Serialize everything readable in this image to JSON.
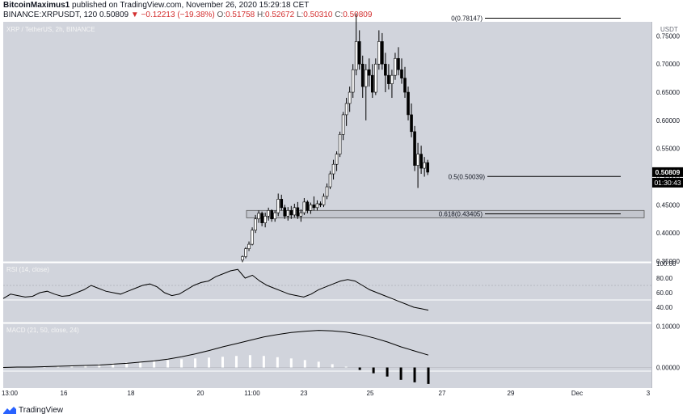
{
  "header": {
    "author": "BitcoinMaximus1",
    "published": "published on TradingView.com, November 26, 2020 15:29:18 CET",
    "symbol": "BINANCE:XRPUSDT, 120",
    "last": "0.50809",
    "change": "▼ −0.12213 (−19.38%)",
    "o_label": "O:",
    "o": "0.51758",
    "h_label": "H:",
    "h": "0.52672",
    "l_label": "L:",
    "l": "0.50310",
    "c_label": "C:",
    "c": "0.50809"
  },
  "footer": {
    "brand": "TradingView"
  },
  "colors": {
    "background": "#d1d4dc",
    "candle_up": "#ffffff",
    "candle_down": "#000000",
    "separator": "#ffffff",
    "fib_line": "#000000",
    "macd_line": "#000000"
  },
  "chart_data": {
    "type": "candlestick",
    "title": "XRP / TetherUS, 2h, BINANCE",
    "y_unit": "USDT",
    "y_ticks": [
      "0.75000",
      "0.70000",
      "0.65000",
      "0.60000",
      "0.55000",
      "0.50000",
      "0.45000",
      "0.40000",
      "0.35000"
    ],
    "x_ticks": [
      "13:00",
      "16",
      "18",
      "20",
      "11:00",
      "23",
      "25",
      "27",
      "29",
      "Dec",
      "3"
    ],
    "last_price": "0.50809",
    "countdown": "01:30:43",
    "candles": [
      [
        0.352,
        0.36,
        0.348,
        0.358
      ],
      [
        0.358,
        0.375,
        0.355,
        0.372
      ],
      [
        0.372,
        0.385,
        0.368,
        0.38
      ],
      [
        0.38,
        0.41,
        0.378,
        0.405
      ],
      [
        0.405,
        0.432,
        0.4,
        0.425
      ],
      [
        0.425,
        0.44,
        0.418,
        0.435
      ],
      [
        0.435,
        0.438,
        0.412,
        0.418
      ],
      [
        0.418,
        0.436,
        0.41,
        0.43
      ],
      [
        0.43,
        0.445,
        0.422,
        0.44
      ],
      [
        0.44,
        0.442,
        0.42,
        0.425
      ],
      [
        0.425,
        0.44,
        0.42,
        0.436
      ],
      [
        0.436,
        0.47,
        0.43,
        0.46
      ],
      [
        0.46,
        0.468,
        0.44,
        0.445
      ],
      [
        0.445,
        0.45,
        0.425,
        0.43
      ],
      [
        0.43,
        0.446,
        0.422,
        0.44
      ],
      [
        0.44,
        0.448,
        0.425,
        0.432
      ],
      [
        0.432,
        0.452,
        0.428,
        0.445
      ],
      [
        0.445,
        0.455,
        0.425,
        0.43
      ],
      [
        0.43,
        0.442,
        0.42,
        0.436
      ],
      [
        0.436,
        0.462,
        0.432,
        0.455
      ],
      [
        0.455,
        0.458,
        0.435,
        0.44
      ],
      [
        0.44,
        0.454,
        0.434,
        0.45
      ],
      [
        0.45,
        0.465,
        0.44,
        0.445
      ],
      [
        0.445,
        0.458,
        0.44,
        0.452
      ],
      [
        0.452,
        0.456,
        0.446,
        0.45
      ],
      [
        0.45,
        0.47,
        0.446,
        0.465
      ],
      [
        0.465,
        0.488,
        0.46,
        0.482
      ],
      [
        0.482,
        0.51,
        0.478,
        0.505
      ],
      [
        0.505,
        0.53,
        0.495,
        0.522
      ],
      [
        0.522,
        0.545,
        0.51,
        0.54
      ],
      [
        0.54,
        0.58,
        0.535,
        0.575
      ],
      [
        0.575,
        0.615,
        0.565,
        0.61
      ],
      [
        0.61,
        0.64,
        0.59,
        0.63
      ],
      [
        0.63,
        0.66,
        0.615,
        0.65
      ],
      [
        0.65,
        0.7,
        0.64,
        0.69
      ],
      [
        0.69,
        0.79,
        0.68,
        0.74
      ],
      [
        0.74,
        0.76,
        0.69,
        0.7
      ],
      [
        0.7,
        0.715,
        0.64,
        0.66
      ],
      [
        0.66,
        0.7,
        0.6,
        0.69
      ],
      [
        0.69,
        0.71,
        0.66,
        0.68
      ],
      [
        0.68,
        0.7,
        0.64,
        0.65
      ],
      [
        0.65,
        0.71,
        0.645,
        0.7
      ],
      [
        0.7,
        0.76,
        0.69,
        0.74
      ],
      [
        0.74,
        0.755,
        0.69,
        0.7
      ],
      [
        0.7,
        0.72,
        0.65,
        0.68
      ],
      [
        0.68,
        0.7,
        0.655,
        0.665
      ],
      [
        0.665,
        0.69,
        0.64,
        0.68
      ],
      [
        0.68,
        0.72,
        0.672,
        0.71
      ],
      [
        0.71,
        0.73,
        0.68,
        0.69
      ],
      [
        0.69,
        0.71,
        0.665,
        0.675
      ],
      [
        0.675,
        0.695,
        0.64,
        0.65
      ],
      [
        0.65,
        0.66,
        0.6,
        0.61
      ],
      [
        0.61,
        0.63,
        0.57,
        0.58
      ],
      [
        0.58,
        0.59,
        0.51,
        0.52
      ],
      [
        0.52,
        0.56,
        0.48,
        0.54
      ],
      [
        0.54,
        0.555,
        0.505,
        0.515
      ],
      [
        0.515,
        0.535,
        0.5,
        0.525
      ],
      [
        0.525,
        0.53,
        0.503,
        0.508
      ]
    ],
    "fib_levels": [
      {
        "label": "0(0.78147)",
        "value": 0.78147
      },
      {
        "label": "0.5(0.50039)",
        "value": 0.50039
      },
      {
        "label": "0.618(0.43405)",
        "value": 0.43405
      }
    ],
    "support_zone": [
      0.427,
      0.44
    ],
    "rsi": {
      "title": "RSI (14, close)",
      "y_ticks": [
        "100.00",
        "80.00",
        "60.00",
        "40.00"
      ],
      "bands": [
        70,
        50
      ],
      "values": [
        52,
        58,
        56,
        54,
        55,
        60,
        62,
        58,
        55,
        56,
        60,
        64,
        70,
        66,
        62,
        60,
        58,
        62,
        66,
        70,
        72,
        68,
        60,
        56,
        58,
        64,
        70,
        74,
        76,
        82,
        86,
        90,
        92,
        80,
        84,
        76,
        70,
        66,
        62,
        58,
        56,
        54,
        58,
        64,
        68,
        72,
        76,
        78,
        76,
        70,
        64,
        60,
        56,
        52,
        48,
        44,
        40,
        38,
        36
      ]
    },
    "macd": {
      "title": "MACD (21, 50, close, 24)",
      "y_ticks": [
        "0.10000",
        "0.00000"
      ],
      "line": [
        0.0,
        0.001,
        0.001,
        0.002,
        0.003,
        0.004,
        0.005,
        0.006,
        0.008,
        0.01,
        0.013,
        0.016,
        0.02,
        0.026,
        0.033,
        0.041,
        0.05,
        0.058,
        0.066,
        0.074,
        0.08,
        0.085,
        0.088,
        0.09,
        0.089,
        0.086,
        0.08,
        0.072,
        0.062,
        0.05,
        0.04,
        0.03
      ],
      "histogram": [
        0.0,
        0.001,
        0.002,
        0.003,
        0.004,
        0.005,
        0.006,
        0.008,
        0.01,
        0.012,
        0.014,
        0.016,
        0.018,
        0.02,
        0.022,
        0.024,
        0.026,
        0.028,
        0.03,
        0.028,
        0.025,
        0.022,
        0.018,
        0.014,
        0.008,
        0.002,
        -0.006,
        -0.014,
        -0.022,
        -0.03,
        -0.036,
        -0.04
      ]
    }
  }
}
